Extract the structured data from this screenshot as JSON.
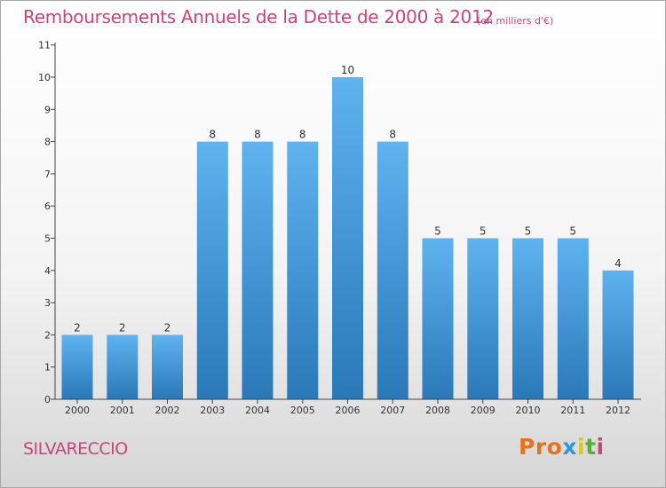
{
  "header": {
    "title": "Remboursements Annuels de la Dette de 2000 à 2012",
    "unit": "(en milliers d'€)"
  },
  "footer": {
    "commune": "SILVARECCIO",
    "brand": "Proxiti",
    "brand_colors": [
      "#e8721c",
      "#e8721c",
      "#e8721c",
      "#2a9bd8",
      "#e4c51c",
      "#55b030",
      "#c6467c"
    ]
  },
  "colors": {
    "bar_light": "#5eb3ef",
    "bar_dark": "#2a78b8",
    "text_accent": "#c6467c"
  },
  "chart_data": {
    "type": "bar",
    "title": "Remboursements Annuels de la Dette de 2000 à 2012",
    "subtitle": "(en milliers d'€)",
    "categories": [
      "2000",
      "2001",
      "2002",
      "2003",
      "2004",
      "2005",
      "2006",
      "2007",
      "2008",
      "2009",
      "2010",
      "2011",
      "2012"
    ],
    "values": [
      2,
      2,
      2,
      8,
      8,
      8,
      10,
      8,
      5,
      5,
      5,
      5,
      4
    ],
    "data_labels": [
      "2",
      "2",
      "2",
      "8",
      "8",
      "8",
      "10",
      "8",
      "5",
      "5",
      "5",
      "5",
      "4"
    ],
    "yticks": [
      "0",
      "1",
      "2",
      "3",
      "4",
      "5",
      "6",
      "7",
      "8",
      "9",
      "10",
      "11"
    ],
    "ylim": [
      0,
      11
    ],
    "grid": false,
    "legend": "none"
  }
}
